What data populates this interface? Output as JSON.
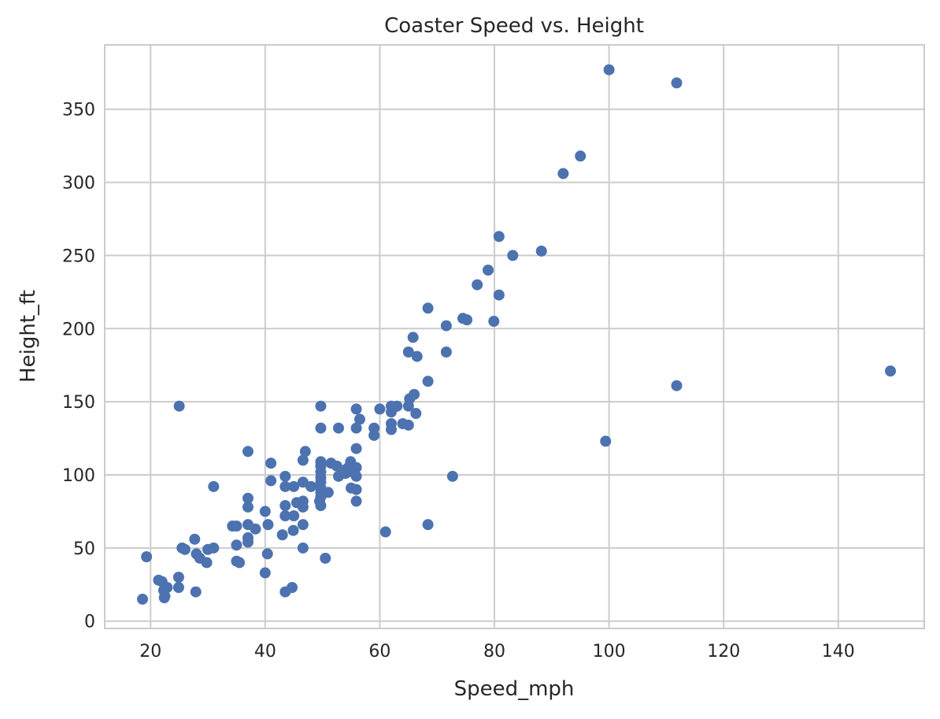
{
  "chart_data": {
    "type": "scatter",
    "title": "Coaster Speed vs. Height",
    "xlabel": "Speed_mph",
    "ylabel": "Height_ft",
    "xlim": [
      12,
      155
    ],
    "ylim": [
      -5,
      394
    ],
    "xticks": [
      20,
      40,
      60,
      80,
      100,
      120,
      140
    ],
    "yticks": [
      0,
      50,
      100,
      150,
      200,
      250,
      300,
      350
    ],
    "grid": true,
    "legend": "none",
    "color": "#4c72b0",
    "points": [
      [
        18.6,
        15
      ],
      [
        19.3,
        44
      ],
      [
        21.4,
        28
      ],
      [
        22,
        27
      ],
      [
        22.3,
        21
      ],
      [
        22.4,
        16
      ],
      [
        22.5,
        17
      ],
      [
        22.9,
        23
      ],
      [
        24.9,
        30
      ],
      [
        24.9,
        23
      ],
      [
        25,
        147
      ],
      [
        25.5,
        50
      ],
      [
        26,
        49
      ],
      [
        27.7,
        56
      ],
      [
        27.9,
        20
      ],
      [
        28,
        46
      ],
      [
        28.6,
        43
      ],
      [
        29.8,
        40
      ],
      [
        30,
        49
      ],
      [
        31,
        50
      ],
      [
        31,
        92
      ],
      [
        34.3,
        65
      ],
      [
        35,
        65
      ],
      [
        35,
        41
      ],
      [
        35.5,
        40
      ],
      [
        35,
        52
      ],
      [
        37,
        54
      ],
      [
        37,
        57
      ],
      [
        37,
        66
      ],
      [
        37,
        78
      ],
      [
        37,
        84
      ],
      [
        37,
        116
      ],
      [
        38.3,
        63
      ],
      [
        40,
        33
      ],
      [
        40,
        75
      ],
      [
        40.4,
        46
      ],
      [
        40.5,
        66
      ],
      [
        41,
        96
      ],
      [
        41,
        108
      ],
      [
        43,
        59
      ],
      [
        43.5,
        20
      ],
      [
        43.5,
        72
      ],
      [
        43.5,
        79
      ],
      [
        43.5,
        92
      ],
      [
        43.5,
        99
      ],
      [
        44.7,
        23
      ],
      [
        44.9,
        62
      ],
      [
        45,
        72
      ],
      [
        45,
        92
      ],
      [
        45.5,
        81
      ],
      [
        46.6,
        50
      ],
      [
        46.6,
        66
      ],
      [
        46.6,
        78
      ],
      [
        46.6,
        82
      ],
      [
        46.6,
        95
      ],
      [
        46.6,
        110
      ],
      [
        47,
        116
      ],
      [
        48,
        92
      ],
      [
        49.5,
        82
      ],
      [
        49.7,
        79
      ],
      [
        49.7,
        85
      ],
      [
        49.7,
        88
      ],
      [
        49.7,
        91
      ],
      [
        49.7,
        95
      ],
      [
        49.7,
        98
      ],
      [
        49.7,
        102
      ],
      [
        49.7,
        106
      ],
      [
        49.7,
        109
      ],
      [
        49.7,
        132
      ],
      [
        49.7,
        147
      ],
      [
        50.5,
        43
      ],
      [
        51,
        88
      ],
      [
        51.5,
        108
      ],
      [
        52.5,
        106
      ],
      [
        52.8,
        99
      ],
      [
        52.8,
        132
      ],
      [
        53.6,
        103
      ],
      [
        54,
        101
      ],
      [
        54.5,
        102
      ],
      [
        54.5,
        105
      ],
      [
        54.9,
        109
      ],
      [
        55,
        91
      ],
      [
        55.9,
        82
      ],
      [
        55.9,
        90
      ],
      [
        55.9,
        99
      ],
      [
        55.9,
        105
      ],
      [
        55.9,
        118
      ],
      [
        55.9,
        132
      ],
      [
        55.9,
        145
      ],
      [
        56.5,
        138
      ],
      [
        59,
        127
      ],
      [
        59,
        132
      ],
      [
        60,
        145
      ],
      [
        61,
        61
      ],
      [
        62,
        131
      ],
      [
        62,
        135
      ],
      [
        62,
        143
      ],
      [
        62,
        147
      ],
      [
        63,
        147
      ],
      [
        64,
        135
      ],
      [
        65,
        147
      ],
      [
        65,
        134
      ],
      [
        65,
        184
      ],
      [
        65.2,
        152
      ],
      [
        65.8,
        194
      ],
      [
        66,
        155
      ],
      [
        66.3,
        142
      ],
      [
        66.5,
        181
      ],
      [
        68.4,
        164
      ],
      [
        68.4,
        214
      ],
      [
        68.4,
        66
      ],
      [
        71.6,
        202
      ],
      [
        71.6,
        184
      ],
      [
        72.7,
        99
      ],
      [
        74.5,
        207
      ],
      [
        75.2,
        206
      ],
      [
        77,
        230
      ],
      [
        78.9,
        240
      ],
      [
        79.9,
        205
      ],
      [
        80.8,
        263
      ],
      [
        80.8,
        223
      ],
      [
        83.2,
        250
      ],
      [
        88.2,
        253
      ],
      [
        92,
        306
      ],
      [
        95,
        318
      ],
      [
        99.4,
        123
      ],
      [
        100,
        377
      ],
      [
        111.8,
        161
      ],
      [
        111.8,
        368
      ],
      [
        149.1,
        171
      ]
    ]
  }
}
